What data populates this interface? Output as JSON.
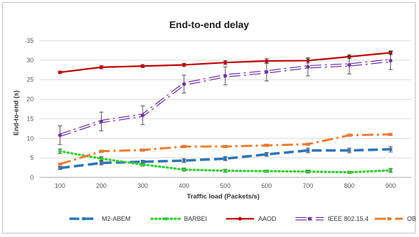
{
  "chart_data": {
    "type": "line",
    "title": "End-to-end delay",
    "xlabel": "Traffic load (Packets/s)",
    "ylabel": "End-to-end (s)",
    "x": [
      100,
      200,
      300,
      400,
      500,
      600,
      700,
      800,
      900
    ],
    "ylim": [
      0,
      35
    ],
    "yticks": [
      0,
      5,
      10,
      15,
      20,
      25,
      30,
      35
    ],
    "grid": true,
    "legend_position": "bottom",
    "series": [
      {
        "name": "M2-ABEM",
        "values": [
          2.4,
          3.7,
          4.0,
          4.3,
          4.8,
          5.9,
          6.9,
          6.9,
          7.2
        ],
        "errors": [
          0.4,
          0.5,
          0.4,
          0.5,
          0.5,
          0.5,
          0.6,
          0.6,
          0.7
        ],
        "color": "#2e75b6",
        "style": "long-dash"
      },
      {
        "name": "BARBEI",
        "values": [
          6.7,
          4.8,
          3.3,
          2.0,
          1.7,
          1.6,
          1.5,
          1.3,
          1.8
        ],
        "errors": [
          0.6,
          0.5,
          0.4,
          0.4,
          0.4,
          0.3,
          0.4,
          0.3,
          0.5
        ],
        "color": "#33cc33",
        "style": "dotted"
      },
      {
        "name": "AAOD",
        "values": [
          26.9,
          28.2,
          28.5,
          28.8,
          29.4,
          29.8,
          29.9,
          30.9,
          31.9
        ],
        "errors": [
          0.3,
          0.4,
          0.4,
          0.4,
          0.5,
          0.6,
          0.6,
          0.5,
          0.5
        ],
        "color": "#c00000",
        "style": "solid"
      },
      {
        "name": "IEEE 802.15.4",
        "values": [
          10.8,
          14.3,
          15.9,
          23.9,
          26.0,
          27.0,
          28.3,
          28.8,
          29.9
        ],
        "errors": [
          2.4,
          2.4,
          2.4,
          2.3,
          2.3,
          2.3,
          2.3,
          2.3,
          2.3
        ],
        "color": "#7030a0",
        "style": "dash-dot"
      },
      {
        "name": "OBSO",
        "values": [
          3.4,
          6.7,
          7.0,
          7.9,
          7.9,
          8.2,
          8.5,
          10.8,
          11.0
        ],
        "errors": [
          0.3,
          0.3,
          0.3,
          0.3,
          0.3,
          0.3,
          0.3,
          0.3,
          0.3
        ],
        "color": "#ed7d31",
        "style": "dash-dot"
      }
    ]
  }
}
